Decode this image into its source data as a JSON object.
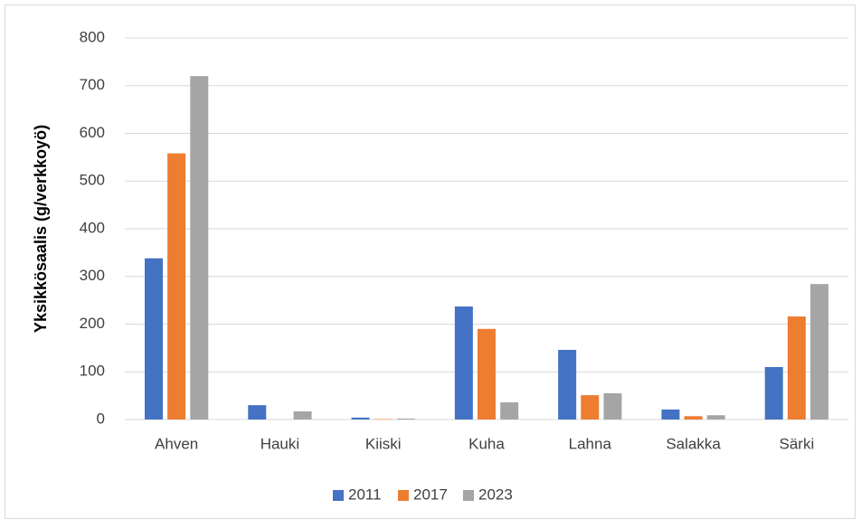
{
  "chart_data": {
    "type": "bar",
    "y_label": "Yksikkösaalis (g/verkkoyö)",
    "categories": [
      "Ahven",
      "Hauki",
      "Kiiski",
      "Kuha",
      "Lahna",
      "Salakka",
      "Särki"
    ],
    "series": [
      {
        "name": "2011",
        "color": "#4472c4",
        "values": [
          338,
          30,
          4,
          237,
          146,
          21,
          110
        ]
      },
      {
        "name": "2017",
        "color": "#ed7d31",
        "values": [
          558,
          0,
          1,
          190,
          51,
          7,
          216
        ]
      },
      {
        "name": "2023",
        "color": "#a5a5a5",
        "values": [
          720,
          17,
          2,
          36,
          55,
          9,
          284
        ]
      }
    ],
    "ylim": [
      0,
      800
    ],
    "yticks": [
      0,
      100,
      200,
      300,
      400,
      500,
      600,
      700,
      800
    ],
    "grid": true,
    "legend": "bottom"
  }
}
